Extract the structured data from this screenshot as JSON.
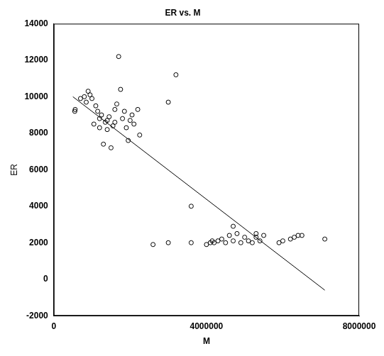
{
  "chart_data": {
    "type": "scatter",
    "title": "ER vs. M",
    "x_label": "M",
    "y_label": "ER",
    "x": [
      550000,
      560000,
      700000,
      800000,
      850000,
      900000,
      950000,
      1000000,
      1050000,
      1100000,
      1150000,
      1200000,
      1250000,
      1300000,
      1350000,
      1400000,
      1450000,
      1500000,
      1550000,
      1600000,
      1650000,
      1700000,
      1750000,
      1800000,
      1850000,
      1900000,
      1950000,
      2000000,
      2050000,
      2100000,
      2200000,
      2250000,
      1600000,
      1400000,
      1200000,
      3000000,
      3200000,
      3600000,
      2600000,
      3000000,
      3600000,
      4000000,
      4100000,
      4150000,
      4200000,
      4300000,
      4400000,
      4500000,
      4600000,
      4700000,
      4800000,
      4900000,
      5000000,
      5100000,
      5200000,
      5300000,
      5400000,
      5500000,
      5900000,
      6000000,
      6200000,
      6300000,
      6400000,
      6500000,
      7100000,
      4700000,
      5300000
    ],
    "y": [
      9200,
      9300,
      9900,
      10000,
      9700,
      10300,
      10100,
      9900,
      8500,
      9500,
      9200,
      8800,
      9000,
      7400,
      8600,
      8700,
      8900,
      7200,
      8400,
      9300,
      9600,
      12200,
      10400,
      8800,
      9200,
      8300,
      7600,
      8700,
      9000,
      8500,
      9300,
      7900,
      8600,
      8200,
      8300,
      9700,
      11200,
      4000,
      1900,
      2000,
      2000,
      1900,
      2000,
      2100,
      2000,
      2100,
      2200,
      2000,
      2400,
      2100,
      2500,
      2000,
      2300,
      2100,
      2000,
      2300,
      2100,
      2400,
      2000,
      2100,
      2200,
      2300,
      2400,
      2400,
      2200,
      2900,
      2500
    ],
    "fit_line": {
      "x": [
        500000,
        7100000
      ],
      "y": [
        10000,
        -600
      ]
    },
    "color": "#000000",
    "marker": "circle",
    "line_style": "solid",
    "xlim": [
      0,
      8000000
    ],
    "xticks": [
      0,
      4000000,
      8000000
    ],
    "ylim": [
      -2000,
      14000
    ],
    "yticks": [
      -2000,
      0,
      2000,
      4000,
      6000,
      8000,
      10000,
      12000,
      14000
    ],
    "grid": false
  }
}
